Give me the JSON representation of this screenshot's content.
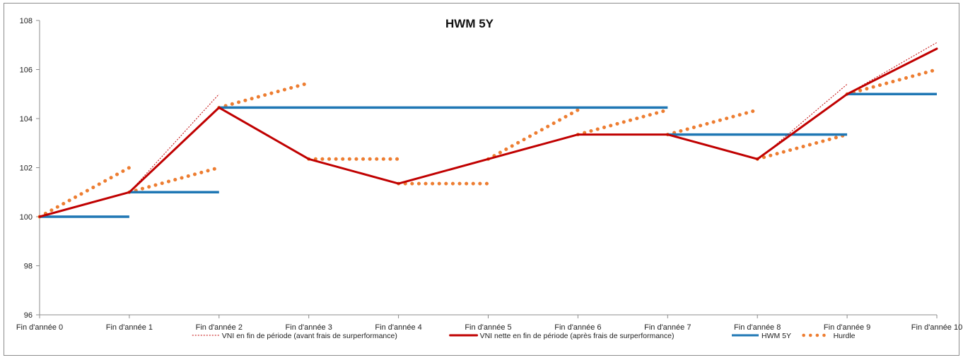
{
  "chart_data": {
    "type": "line",
    "title": "HWM 5Y",
    "xlabel": "",
    "ylabel": "",
    "ylim": [
      96,
      108
    ],
    "yticks": [
      "96",
      "98",
      "100",
      "102",
      "104",
      "106",
      "108"
    ],
    "categories": [
      "Fin d'année 0",
      "Fin d'année 1",
      "Fin d'année 2",
      "Fin d'année 3",
      "Fin d'année 4",
      "Fin d'année 5",
      "Fin d'année 6",
      "Fin d'année 7",
      "Fin d'année 8",
      "Fin d'année 9",
      "Fin d'année 10"
    ],
    "grid": false,
    "legend_position": "bottom",
    "series": [
      {
        "name": "VNI en fin de période (avant frais de surperformance)",
        "color": "#c00000",
        "style": "thin-dotted",
        "segments": [
          [
            [
              1,
              101.0
            ],
            [
              2,
              105.0
            ]
          ],
          [
            [
              8,
              102.3
            ],
            [
              9,
              105.4
            ]
          ],
          [
            [
              9,
              105.0
            ],
            [
              10,
              107.1
            ]
          ]
        ]
      },
      {
        "name": "VNI nette en fin de période (après frais de surperformance)",
        "color": "#c00000",
        "style": "solid",
        "points": [
          [
            0,
            100.0
          ],
          [
            1,
            101.0
          ],
          [
            2,
            104.45
          ],
          [
            3,
            102.35
          ],
          [
            4,
            101.35
          ],
          [
            5,
            102.35
          ],
          [
            6,
            103.35
          ],
          [
            7,
            103.35
          ],
          [
            8,
            102.35
          ],
          [
            9,
            105.0
          ],
          [
            10,
            106.85
          ]
        ]
      },
      {
        "name": "HWM 5Y",
        "color": "#1f77b4",
        "style": "solid-thick",
        "segments": [
          [
            [
              0,
              100.0
            ],
            [
              1,
              100.0
            ]
          ],
          [
            [
              1,
              101.0
            ],
            [
              2,
              101.0
            ]
          ],
          [
            [
              2,
              104.45
            ],
            [
              7,
              104.45
            ]
          ],
          [
            [
              7,
              103.35
            ],
            [
              9,
              103.35
            ]
          ],
          [
            [
              9,
              105.0
            ],
            [
              10,
              105.0
            ]
          ]
        ]
      },
      {
        "name": "Hurdle",
        "color": "#ed7d31",
        "style": "dotted-round",
        "segments": [
          [
            [
              0,
              100.0
            ],
            [
              1,
              102.0
            ]
          ],
          [
            [
              1,
              101.0
            ],
            [
              2,
              102.0
            ]
          ],
          [
            [
              2,
              104.45
            ],
            [
              3,
              105.45
            ]
          ],
          [
            [
              3,
              102.35
            ],
            [
              4,
              102.35
            ]
          ],
          [
            [
              4,
              101.35
            ],
            [
              5,
              101.35
            ]
          ],
          [
            [
              5,
              102.35
            ],
            [
              6,
              104.35
            ]
          ],
          [
            [
              6,
              103.35
            ],
            [
              7,
              104.35
            ]
          ],
          [
            [
              7,
              103.35
            ],
            [
              8,
              104.35
            ]
          ],
          [
            [
              8,
              102.35
            ],
            [
              9,
              103.35
            ]
          ],
          [
            [
              9,
              105.0
            ],
            [
              10,
              106.0
            ]
          ]
        ]
      }
    ]
  }
}
